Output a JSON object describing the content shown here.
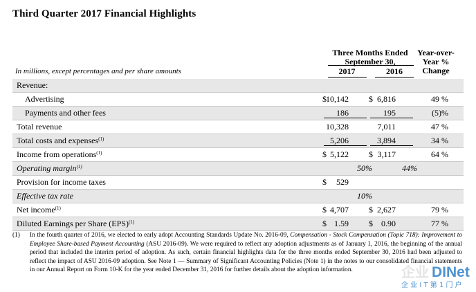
{
  "title": "Third Quarter 2017 Financial Highlights",
  "header": {
    "three_months": "Three Months Ended",
    "period": "September 30,",
    "year_a": "2017",
    "year_b": "2016",
    "yoy_line1": "Year-over-",
    "yoy_line2": "Year %",
    "yoy_line3": "Change"
  },
  "caption": "In millions, except percentages and per share amounts",
  "rows": [
    {
      "label": "Revenue:",
      "d1": "",
      "v1": "",
      "d2": "",
      "v2": "",
      "change": ""
    },
    {
      "label": "Advertising",
      "d1": "$",
      "v1": "10,142",
      "d2": "$",
      "v2": "6,816",
      "change": "49 %"
    },
    {
      "label": "Payments and other fees",
      "d1": "",
      "v1": "186",
      "d2": "",
      "v2": "195",
      "change": "(5)%"
    },
    {
      "label": "Total revenue",
      "d1": "",
      "v1": "10,328",
      "d2": "",
      "v2": "7,011",
      "change": "47 %"
    },
    {
      "label": "Total costs and expenses",
      "sup": "(1)",
      "d1": "",
      "v1": "5,206",
      "d2": "",
      "v2": "3,894",
      "change": "34 %"
    },
    {
      "label": "Income from operations",
      "sup": "(1)",
      "d1": "$",
      "v1": "5,122",
      "d2": "$",
      "v2": "3,117",
      "change": "64 %"
    },
    {
      "label": "Operating margin",
      "sup": "(1)",
      "p1": "50%",
      "p2": "44%"
    },
    {
      "label": "Provision for income taxes",
      "d1": "$",
      "v1": "529",
      "d2": "",
      "v2": "",
      "change": ""
    },
    {
      "label": "Effective tax rate",
      "p1": "10%",
      "p2": ""
    },
    {
      "label": "Net income",
      "sup": "(1)",
      "d1": "$",
      "v1": "4,707",
      "d2": "$",
      "v2": "2,627",
      "change": "79 %"
    },
    {
      "label": "Diluted Earnings per Share (EPS)",
      "sup": "(1)",
      "d1": "$",
      "v1": "1.59",
      "d2": "$",
      "v2": "0.90",
      "change": "77 %"
    }
  ],
  "footnote": {
    "number": "(1)",
    "part1": "In the fourth quarter of 2016, we elected to early adopt Accounting Standards Update No. 2016-09, ",
    "italic": "Compensation - Stock Compensation (Topic 718): Improvement to Employee Share-based Payment Accounting",
    "part2": " (ASU 2016-09). We were required to reflect any adoption adjustments as of January 1, 2016, the beginning of the annual period that included the interim period of adoption. As such, certain financial highlights data for the three months ended September 30, 2016 had been adjusted to reflect the impact of ASU 2016-09 adoption. See Note 1 — Summary of Significant Accounting Policies (Note 1) in the notes to our consolidated financial statements in our Annual Report on Form 10-K for the year ended December 31, 2016 for further details about the adoption information."
  },
  "watermark": {
    "brand": "DINet",
    "subtitle": "企 业 I T 第 1 门 户"
  }
}
